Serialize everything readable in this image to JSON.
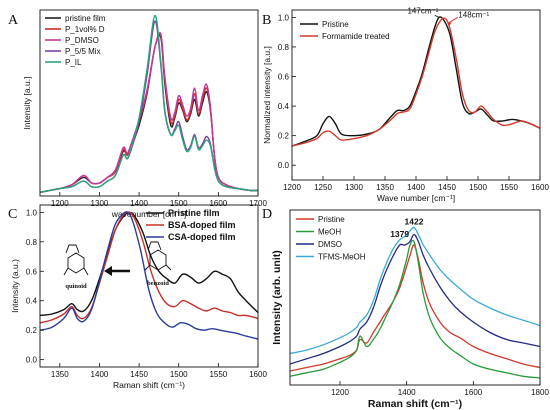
{
  "chart_data": [
    {
      "panel": "A",
      "type": "line",
      "xlabel": "wavenumber [cm⁻¹]",
      "ylabel": "Intensity [a.u.]",
      "xlim": [
        1150,
        1700
      ],
      "ylim": [
        0,
        1.0
      ],
      "xticks": [
        1200,
        1300,
        1400,
        1500,
        1600,
        1700
      ],
      "xtick_labels": [
        "1200",
        "1300",
        "1400",
        "1500",
        "1600",
        "1700"
      ],
      "legend_position": "top-left",
      "series": [
        {
          "name": "pristine film",
          "color": "#222222",
          "x": [
            1150,
            1200,
            1230,
            1260,
            1280,
            1300,
            1320,
            1340,
            1360,
            1370,
            1380,
            1400,
            1420,
            1440,
            1455,
            1465,
            1480,
            1490,
            1500,
            1510,
            1520,
            1530,
            1540,
            1550,
            1560,
            1570,
            1580,
            1590,
            1600,
            1620,
            1650,
            1680,
            1700
          ],
          "y": [
            0.02,
            0.04,
            0.06,
            0.1,
            0.07,
            0.07,
            0.1,
            0.13,
            0.24,
            0.22,
            0.26,
            0.38,
            0.55,
            0.8,
            0.85,
            0.6,
            0.38,
            0.42,
            0.5,
            0.46,
            0.4,
            0.44,
            0.52,
            0.43,
            0.5,
            0.56,
            0.46,
            0.22,
            0.1,
            0.06,
            0.04,
            0.03,
            0.03
          ]
        },
        {
          "name": "P_1vol% D",
          "color": "#d42a2a",
          "x": [
            1150,
            1200,
            1230,
            1260,
            1280,
            1300,
            1320,
            1340,
            1360,
            1370,
            1380,
            1400,
            1420,
            1440,
            1455,
            1465,
            1480,
            1490,
            1500,
            1510,
            1520,
            1530,
            1540,
            1550,
            1560,
            1570,
            1580,
            1590,
            1600,
            1620,
            1650,
            1680,
            1700
          ],
          "y": [
            0.02,
            0.04,
            0.06,
            0.11,
            0.07,
            0.07,
            0.1,
            0.13,
            0.25,
            0.22,
            0.27,
            0.4,
            0.56,
            0.8,
            0.86,
            0.62,
            0.4,
            0.43,
            0.52,
            0.47,
            0.41,
            0.45,
            0.55,
            0.44,
            0.52,
            0.58,
            0.47,
            0.22,
            0.1,
            0.06,
            0.04,
            0.03,
            0.03
          ]
        },
        {
          "name": "P_DMSO",
          "color": "#c23a9e",
          "x": [
            1150,
            1200,
            1230,
            1260,
            1280,
            1300,
            1320,
            1340,
            1360,
            1370,
            1380,
            1400,
            1420,
            1440,
            1455,
            1465,
            1480,
            1490,
            1500,
            1510,
            1520,
            1530,
            1540,
            1550,
            1560,
            1570,
            1580,
            1590,
            1600,
            1620,
            1650,
            1680,
            1700
          ],
          "y": [
            0.02,
            0.04,
            0.06,
            0.11,
            0.07,
            0.07,
            0.1,
            0.14,
            0.26,
            0.23,
            0.28,
            0.41,
            0.57,
            0.8,
            0.87,
            0.64,
            0.42,
            0.45,
            0.54,
            0.49,
            0.43,
            0.47,
            0.58,
            0.46,
            0.54,
            0.6,
            0.48,
            0.22,
            0.1,
            0.06,
            0.04,
            0.03,
            0.03
          ]
        },
        {
          "name": "P_5/5 Mix",
          "color": "#7b3fa8",
          "x": [
            1150,
            1200,
            1230,
            1260,
            1280,
            1300,
            1320,
            1340,
            1360,
            1370,
            1380,
            1400,
            1420,
            1440,
            1455,
            1465,
            1480,
            1490,
            1500,
            1510,
            1520,
            1530,
            1540,
            1550,
            1560,
            1570,
            1580,
            1590,
            1600,
            1620,
            1650,
            1680,
            1700
          ],
          "y": [
            0.02,
            0.04,
            0.05,
            0.08,
            0.05,
            0.05,
            0.08,
            0.11,
            0.22,
            0.2,
            0.25,
            0.4,
            0.65,
            0.94,
            0.7,
            0.45,
            0.33,
            0.36,
            0.4,
            0.32,
            0.25,
            0.27,
            0.33,
            0.26,
            0.28,
            0.32,
            0.28,
            0.16,
            0.08,
            0.05,
            0.04,
            0.03,
            0.03
          ]
        },
        {
          "name": "P_IL",
          "color": "#2aa57a",
          "x": [
            1150,
            1200,
            1230,
            1260,
            1280,
            1300,
            1320,
            1340,
            1360,
            1370,
            1380,
            1400,
            1420,
            1440,
            1455,
            1465,
            1480,
            1490,
            1500,
            1510,
            1520,
            1530,
            1540,
            1550,
            1560,
            1570,
            1580,
            1590,
            1600,
            1620,
            1650,
            1680,
            1700
          ],
          "y": [
            0.02,
            0.04,
            0.05,
            0.08,
            0.05,
            0.05,
            0.08,
            0.11,
            0.22,
            0.2,
            0.26,
            0.42,
            0.68,
            0.97,
            0.72,
            0.46,
            0.33,
            0.35,
            0.38,
            0.3,
            0.24,
            0.26,
            0.32,
            0.25,
            0.27,
            0.3,
            0.27,
            0.15,
            0.08,
            0.05,
            0.04,
            0.03,
            0.03
          ]
        }
      ]
    },
    {
      "panel": "B",
      "type": "line",
      "xlabel": "Wave number [cm⁻¹]",
      "ylabel": "Normalized intensity [a.u.]",
      "xlim": [
        1200,
        1600
      ],
      "ylim": [
        -0.1,
        1.05
      ],
      "xticks": [
        1200,
        1250,
        1300,
        1350,
        1400,
        1450,
        1500,
        1550,
        1600
      ],
      "yticks": [
        0.0,
        0.2,
        0.4,
        0.6,
        0.8,
        1.0
      ],
      "ytick_labels": [
        "0.0",
        "0.2",
        "0.4",
        "0.6",
        "0.8",
        "1.0"
      ],
      "legend_position": "top-left",
      "annotations": [
        {
          "text": "147cm⁻¹",
          "x": 1437,
          "y": 1.0
        },
        {
          "text": "148cm⁻¹",
          "x": 1448,
          "y": 0.96
        }
      ],
      "series": [
        {
          "name": "Pristine",
          "color": "#111111",
          "x": [
            1200,
            1220,
            1240,
            1250,
            1260,
            1270,
            1280,
            1300,
            1320,
            1340,
            1360,
            1370,
            1380,
            1390,
            1400,
            1410,
            1420,
            1430,
            1437,
            1445,
            1455,
            1465,
            1475,
            1485,
            1495,
            1505,
            1515,
            1525,
            1540,
            1555,
            1570,
            1585,
            1600
          ],
          "y": [
            0.13,
            0.16,
            0.2,
            0.28,
            0.33,
            0.28,
            0.21,
            0.2,
            0.21,
            0.24,
            0.33,
            0.37,
            0.37,
            0.4,
            0.5,
            0.62,
            0.78,
            0.93,
            1.0,
            0.98,
            0.88,
            0.65,
            0.42,
            0.35,
            0.36,
            0.38,
            0.34,
            0.3,
            0.3,
            0.31,
            0.3,
            0.28,
            0.25
          ]
        },
        {
          "name": "Formamide treated",
          "color": "#d43a2a",
          "x": [
            1200,
            1220,
            1240,
            1250,
            1260,
            1270,
            1280,
            1300,
            1320,
            1340,
            1360,
            1370,
            1380,
            1390,
            1400,
            1410,
            1420,
            1430,
            1440,
            1448,
            1455,
            1465,
            1475,
            1485,
            1495,
            1505,
            1515,
            1525,
            1540,
            1555,
            1570,
            1585,
            1600
          ],
          "y": [
            0.13,
            0.15,
            0.18,
            0.22,
            0.23,
            0.2,
            0.17,
            0.18,
            0.2,
            0.24,
            0.31,
            0.35,
            0.36,
            0.38,
            0.48,
            0.6,
            0.75,
            0.9,
            0.98,
            0.99,
            0.92,
            0.72,
            0.48,
            0.37,
            0.36,
            0.4,
            0.36,
            0.31,
            0.27,
            0.28,
            0.3,
            0.28,
            0.25
          ]
        }
      ]
    },
    {
      "panel": "C",
      "type": "line",
      "xlabel": "Raman shift (cm⁻¹)",
      "ylabel": "Intensity (a.u.)",
      "xlim": [
        1325,
        1600
      ],
      "ylim": [
        -0.05,
        1.05
      ],
      "xticks": [
        1350,
        1400,
        1450,
        1500,
        1550,
        1600
      ],
      "yticks": [
        0.0,
        0.2,
        0.4,
        0.6,
        0.8,
        1.0
      ],
      "ytick_labels": [
        "0.0",
        "0.2",
        "0.4",
        "0.6",
        "0.8",
        "1.0"
      ],
      "legend_position": "top-right",
      "molecules": [
        "quinoid",
        "benzoid"
      ],
      "series": [
        {
          "name": "Pristine film",
          "color": "#111111",
          "x": [
            1325,
            1340,
            1355,
            1365,
            1372,
            1380,
            1390,
            1400,
            1410,
            1420,
            1430,
            1438,
            1445,
            1455,
            1465,
            1475,
            1485,
            1495,
            1505,
            1515,
            1525,
            1535,
            1545,
            1555,
            1565,
            1575,
            1585,
            1600
          ],
          "y": [
            0.3,
            0.31,
            0.34,
            0.38,
            0.34,
            0.33,
            0.4,
            0.55,
            0.72,
            0.88,
            0.97,
            1.0,
            0.97,
            0.86,
            0.7,
            0.6,
            0.55,
            0.52,
            0.58,
            0.56,
            0.52,
            0.55,
            0.6,
            0.58,
            0.55,
            0.46,
            0.4,
            0.32
          ]
        },
        {
          "name": "BSA-doped film",
          "color": "#c8302a",
          "x": [
            1325,
            1340,
            1355,
            1365,
            1372,
            1380,
            1390,
            1400,
            1410,
            1420,
            1430,
            1438,
            1445,
            1455,
            1465,
            1475,
            1485,
            1495,
            1505,
            1515,
            1525,
            1535,
            1545,
            1555,
            1565,
            1575,
            1585,
            1600
          ],
          "y": [
            0.25,
            0.27,
            0.31,
            0.36,
            0.3,
            0.28,
            0.35,
            0.52,
            0.7,
            0.88,
            0.98,
            1.0,
            0.95,
            0.8,
            0.6,
            0.46,
            0.38,
            0.36,
            0.4,
            0.38,
            0.35,
            0.33,
            0.35,
            0.33,
            0.32,
            0.3,
            0.3,
            0.28
          ]
        },
        {
          "name": "CSA-doped film",
          "color": "#2c3c9e",
          "x": [
            1325,
            1340,
            1355,
            1365,
            1372,
            1380,
            1390,
            1400,
            1410,
            1420,
            1430,
            1436,
            1442,
            1452,
            1462,
            1472,
            1482,
            1492,
            1502,
            1512,
            1522,
            1532,
            1542,
            1552,
            1562,
            1572,
            1585,
            1600
          ],
          "y": [
            0.2,
            0.22,
            0.28,
            0.35,
            0.28,
            0.26,
            0.34,
            0.53,
            0.74,
            0.92,
            0.99,
            1.0,
            0.94,
            0.74,
            0.48,
            0.32,
            0.25,
            0.22,
            0.25,
            0.24,
            0.21,
            0.2,
            0.21,
            0.2,
            0.19,
            0.18,
            0.16,
            0.14
          ]
        }
      ]
    },
    {
      "panel": "D",
      "type": "line",
      "xlabel": "Raman shift (cm⁻¹)",
      "ylabel": "Intensity (arb. unit)",
      "xlim": [
        1050,
        1800
      ],
      "ylim": [
        0,
        1.0
      ],
      "xticks": [
        1200,
        1400,
        1600,
        1800
      ],
      "legend_position": "top-left",
      "annotations": [
        {
          "text": "1379",
          "x": 1379,
          "y": 0.83
        },
        {
          "text": "1422",
          "x": 1422,
          "y": 0.9
        }
      ],
      "series": [
        {
          "name": "Pristine",
          "color": "#d23a2a",
          "x": [
            1050,
            1100,
            1150,
            1200,
            1230,
            1250,
            1260,
            1280,
            1300,
            1320,
            1340,
            1360,
            1380,
            1400,
            1410,
            1422,
            1435,
            1450,
            1470,
            1500,
            1530,
            1560,
            1600,
            1650,
            1700,
            1750,
            1800
          ],
          "y": [
            0.08,
            0.1,
            0.12,
            0.15,
            0.17,
            0.2,
            0.26,
            0.24,
            0.3,
            0.36,
            0.42,
            0.48,
            0.56,
            0.68,
            0.74,
            0.8,
            0.72,
            0.58,
            0.46,
            0.36,
            0.3,
            0.27,
            0.22,
            0.18,
            0.15,
            0.12,
            0.1
          ]
        },
        {
          "name": "MeOH",
          "color": "#2a9a3a",
          "x": [
            1050,
            1100,
            1150,
            1200,
            1230,
            1250,
            1260,
            1280,
            1300,
            1320,
            1340,
            1360,
            1380,
            1400,
            1410,
            1422,
            1435,
            1450,
            1470,
            1500,
            1530,
            1560,
            1600,
            1650,
            1700,
            1750,
            1800
          ],
          "y": [
            0.05,
            0.07,
            0.09,
            0.13,
            0.16,
            0.2,
            0.28,
            0.22,
            0.26,
            0.32,
            0.4,
            0.48,
            0.58,
            0.72,
            0.8,
            0.82,
            0.7,
            0.52,
            0.38,
            0.27,
            0.21,
            0.17,
            0.12,
            0.09,
            0.07,
            0.05,
            0.04
          ]
        },
        {
          "name": "DMSO",
          "color": "#222a80",
          "x": [
            1050,
            1100,
            1150,
            1200,
            1230,
            1250,
            1260,
            1280,
            1300,
            1320,
            1340,
            1360,
            1379,
            1395,
            1410,
            1422,
            1435,
            1450,
            1470,
            1500,
            1530,
            1560,
            1600,
            1650,
            1700,
            1750,
            1800
          ],
          "y": [
            0.12,
            0.15,
            0.18,
            0.22,
            0.25,
            0.28,
            0.32,
            0.36,
            0.44,
            0.56,
            0.66,
            0.74,
            0.8,
            0.8,
            0.82,
            0.86,
            0.82,
            0.74,
            0.66,
            0.56,
            0.48,
            0.42,
            0.36,
            0.3,
            0.26,
            0.24,
            0.22
          ]
        },
        {
          "name": "TFMS-MeOH",
          "color": "#3aaad8",
          "x": [
            1050,
            1100,
            1150,
            1200,
            1230,
            1250,
            1260,
            1280,
            1300,
            1320,
            1340,
            1360,
            1379,
            1395,
            1410,
            1422,
            1435,
            1450,
            1470,
            1500,
            1530,
            1560,
            1600,
            1650,
            1700,
            1750,
            1800
          ],
          "y": [
            0.18,
            0.2,
            0.23,
            0.27,
            0.3,
            0.33,
            0.36,
            0.4,
            0.48,
            0.6,
            0.7,
            0.78,
            0.83,
            0.85,
            0.88,
            0.9,
            0.86,
            0.8,
            0.74,
            0.66,
            0.6,
            0.55,
            0.49,
            0.44,
            0.4,
            0.37,
            0.34
          ]
        }
      ]
    }
  ],
  "panels": {
    "A": {
      "label": "A"
    },
    "B": {
      "label": "B"
    },
    "C": {
      "label": "C"
    },
    "D": {
      "label": "D"
    }
  }
}
